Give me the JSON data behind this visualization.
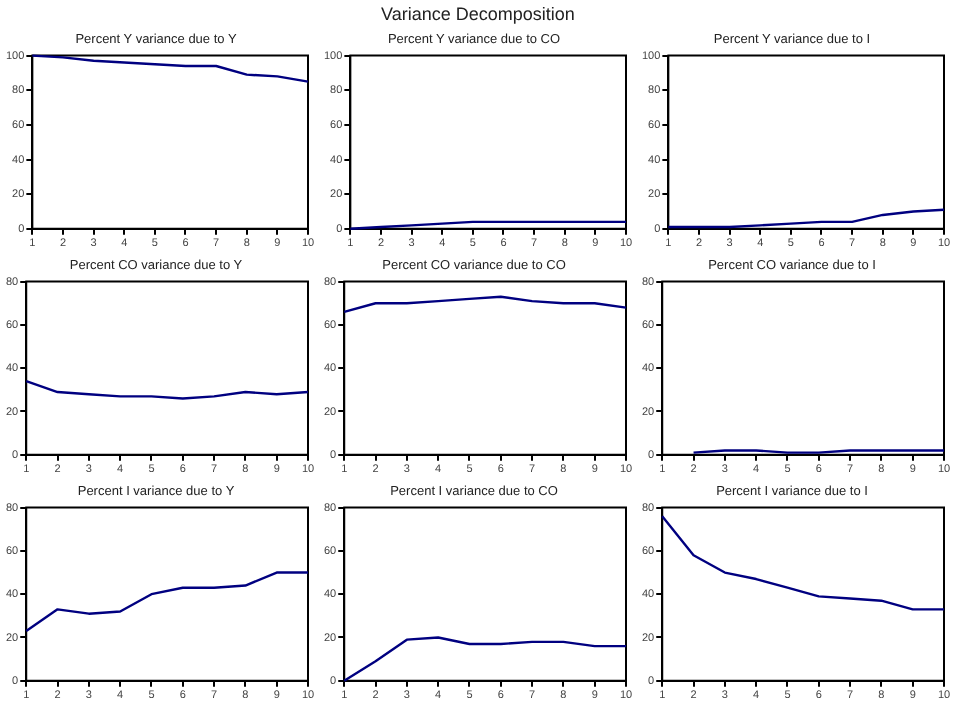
{
  "chart_data": [
    {
      "type": "line",
      "title": "Percent Y variance due to Y",
      "annotations": [
        "Variance Decomposition"
      ],
      "x": [
        1,
        2,
        3,
        4,
        5,
        6,
        7,
        8,
        9,
        10
      ],
      "values": [
        100,
        99,
        97,
        96,
        95,
        94,
        94,
        89,
        88,
        85
      ],
      "color": "#000080",
      "xlim": [
        1,
        10
      ],
      "xticks": [
        1,
        2,
        3,
        4,
        5,
        6,
        7,
        8,
        9,
        10
      ],
      "ylim": [
        0,
        100
      ],
      "yticks": [
        0,
        20,
        40,
        60,
        80,
        100
      ],
      "marker": "none",
      "legend": false
    },
    {
      "type": "line",
      "title": "Percent Y variance due to CO",
      "x": [
        1,
        2,
        3,
        4,
        5,
        6,
        7,
        8,
        9,
        10
      ],
      "values": [
        0,
        1,
        2,
        3,
        4,
        4,
        4,
        4,
        4,
        4
      ],
      "color": "#000080",
      "xlim": [
        1,
        10
      ],
      "xticks": [
        1,
        2,
        3,
        4,
        5,
        6,
        7,
        8,
        9,
        10
      ],
      "ylim": [
        0,
        100
      ],
      "yticks": [
        0,
        20,
        40,
        60,
        80,
        100
      ],
      "marker": "none",
      "legend": false
    },
    {
      "type": "line",
      "title": "Percent Y variance due to I",
      "x": [
        1,
        2,
        3,
        4,
        5,
        6,
        7,
        8,
        9,
        10
      ],
      "values": [
        1,
        1,
        1,
        2,
        3,
        4,
        4,
        8,
        10,
        11
      ],
      "color": "#000080",
      "xlim": [
        1,
        10
      ],
      "xticks": [
        1,
        2,
        3,
        4,
        5,
        6,
        7,
        8,
        9,
        10
      ],
      "ylim": [
        0,
        100
      ],
      "yticks": [
        0,
        20,
        40,
        60,
        80,
        100
      ],
      "marker": "none",
      "legend": false
    },
    {
      "type": "line",
      "title": "Percent CO variance due to Y",
      "x": [
        1,
        2,
        3,
        4,
        5,
        6,
        7,
        8,
        9,
        10
      ],
      "values": [
        34,
        29,
        28,
        27,
        27,
        26,
        27,
        29,
        28,
        29
      ],
      "color": "#000080",
      "xlim": [
        1,
        10
      ],
      "xticks": [
        1,
        2,
        3,
        4,
        5,
        6,
        7,
        8,
        9,
        10
      ],
      "ylim": [
        0,
        80
      ],
      "yticks": [
        0,
        20,
        40,
        60,
        80
      ],
      "marker": "none",
      "legend": false
    },
    {
      "type": "line",
      "title": "Percent CO variance due to CO",
      "x": [
        1,
        2,
        3,
        4,
        5,
        6,
        7,
        8,
        9,
        10
      ],
      "values": [
        66,
        70,
        70,
        71,
        72,
        73,
        71,
        70,
        70,
        68
      ],
      "color": "#000080",
      "xlim": [
        1,
        10
      ],
      "xticks": [
        1,
        2,
        3,
        4,
        5,
        6,
        7,
        8,
        9,
        10
      ],
      "ylim": [
        0,
        80
      ],
      "yticks": [
        0,
        20,
        40,
        60,
        80
      ],
      "marker": "none",
      "legend": false
    },
    {
      "type": "line",
      "title": "Percent CO variance due to I",
      "x": [
        2,
        3,
        4,
        5,
        6,
        7,
        8,
        9,
        10
      ],
      "values": [
        1,
        2,
        2,
        1,
        1,
        2,
        2,
        2,
        2
      ],
      "color": "#000080",
      "xlim": [
        1,
        10
      ],
      "xticks": [
        1,
        2,
        3,
        4,
        5,
        6,
        7,
        8,
        9,
        10
      ],
      "ylim": [
        0,
        80
      ],
      "yticks": [
        0,
        20,
        40,
        60,
        80
      ],
      "marker": "none",
      "legend": false
    },
    {
      "type": "line",
      "title": "Percent I variance due to Y",
      "x": [
        1,
        2,
        3,
        4,
        5,
        6,
        7,
        8,
        9,
        10
      ],
      "values": [
        23,
        33,
        31,
        32,
        40,
        43,
        43,
        44,
        50,
        50
      ],
      "color": "#000080",
      "xlim": [
        1,
        10
      ],
      "xticks": [
        1,
        2,
        3,
        4,
        5,
        6,
        7,
        8,
        9,
        10
      ],
      "ylim": [
        0,
        80
      ],
      "yticks": [
        0,
        20,
        40,
        60,
        80
      ],
      "marker": "none",
      "legend": false
    },
    {
      "type": "line",
      "title": "Percent I variance due to CO",
      "x": [
        1,
        2,
        3,
        4,
        5,
        6,
        7,
        8,
        9,
        10
      ],
      "values": [
        0,
        9,
        19,
        20,
        17,
        17,
        18,
        18,
        16,
        16
      ],
      "color": "#000080",
      "xlim": [
        1,
        10
      ],
      "xticks": [
        1,
        2,
        3,
        4,
        5,
        6,
        7,
        8,
        9,
        10
      ],
      "ylim": [
        0,
        80
      ],
      "yticks": [
        0,
        20,
        40,
        60,
        80
      ],
      "marker": "none",
      "legend": false
    },
    {
      "type": "line",
      "title": "Percent I variance due to I",
      "x": [
        1,
        2,
        3,
        4,
        5,
        6,
        7,
        8,
        9,
        10
      ],
      "values": [
        76,
        58,
        50,
        47,
        43,
        39,
        38,
        37,
        33,
        33
      ],
      "color": "#000080",
      "xlim": [
        1,
        10
      ],
      "xticks": [
        1,
        2,
        3,
        4,
        5,
        6,
        7,
        8,
        9,
        10
      ],
      "ylim": [
        0,
        80
      ],
      "yticks": [
        0,
        20,
        40,
        60,
        80
      ],
      "marker": "none",
      "legend": false
    }
  ]
}
